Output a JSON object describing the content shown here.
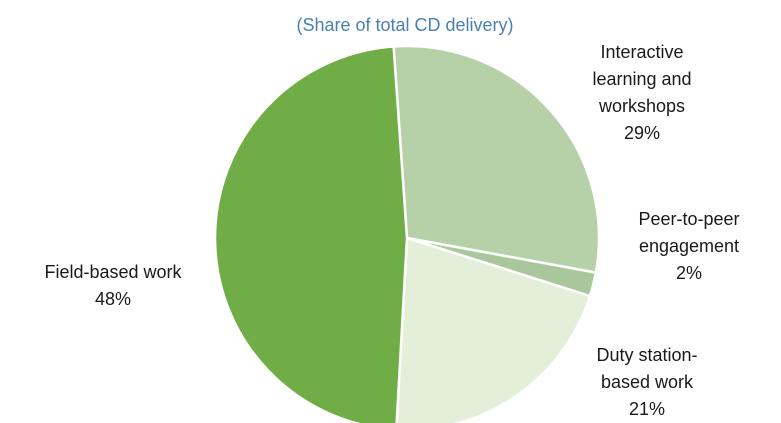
{
  "chart_data": {
    "type": "pie",
    "title": "",
    "subtitle": "(Share of total CD delivery)",
    "slices": [
      {
        "label": "Interactive learning and workshops",
        "label_lines": [
          "Interactive",
          "learning and",
          "workshops"
        ],
        "value": 29,
        "display": "29%",
        "color": "#b6d0a8"
      },
      {
        "label": "Peer-to-peer engagement",
        "label_lines": [
          "Peer-to-peer",
          "engagement"
        ],
        "value": 2,
        "display": "2%",
        "color": "#a9c79a"
      },
      {
        "label": "Duty station-based work",
        "label_lines": [
          "Duty station-",
          "based work"
        ],
        "value": 21,
        "display": "21%",
        "color": "#e3efd9"
      },
      {
        "label": "Field-based work",
        "label_lines": [
          "Field-based work"
        ],
        "value": 48,
        "display": "48%",
        "color": "#70ad47"
      }
    ]
  }
}
